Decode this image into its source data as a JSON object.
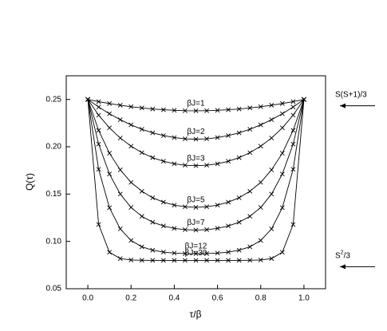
{
  "chart_data": {
    "type": "line",
    "x_label": "τ/β",
    "y_label": "Q(τ)",
    "x": [
      0,
      0.05,
      0.1,
      0.15,
      0.2,
      0.25,
      0.3,
      0.35,
      0.4,
      0.45,
      0.5,
      0.55,
      0.6,
      0.65,
      0.7,
      0.75,
      0.8,
      0.85,
      0.9,
      0.95,
      1
    ],
    "series": [
      {
        "name": "βJ=1",
        "color": "#000000",
        "values": [
          0.25,
          0.2477,
          0.2457,
          0.2439,
          0.2423,
          0.241,
          0.2399,
          0.2391,
          0.2385,
          0.2381,
          0.238,
          0.2381,
          0.2385,
          0.2391,
          0.2399,
          0.241,
          0.2423,
          0.2439,
          0.2457,
          0.2477,
          0.25
        ]
      },
      {
        "name": "βJ=2",
        "color": "#000000",
        "values": [
          0.25,
          0.242,
          0.2349,
          0.2286,
          0.2231,
          0.2185,
          0.2147,
          0.2118,
          0.2097,
          0.2084,
          0.208,
          0.2084,
          0.2097,
          0.2118,
          0.2147,
          0.2185,
          0.2231,
          0.2286,
          0.2349,
          0.242,
          0.25
        ]
      },
      {
        "name": "βJ=3",
        "color": "#000000",
        "values": [
          0.25,
          0.2334,
          0.22,
          0.2092,
          0.2006,
          0.1938,
          0.1885,
          0.1847,
          0.182,
          0.1805,
          0.18,
          0.1805,
          0.182,
          0.1847,
          0.1885,
          0.1938,
          0.2006,
          0.2092,
          0.22,
          0.2334,
          0.25
        ]
      },
      {
        "name": "βJ=5",
        "color": "#000000",
        "values": [
          0.25,
          0.2173,
          0.1932,
          0.1756,
          0.1624,
          0.153,
          0.1461,
          0.1415,
          0.1383,
          0.1366,
          0.136,
          0.1366,
          0.1383,
          0.1415,
          0.1461,
          0.153,
          0.1624,
          0.1756,
          0.1932,
          0.2173,
          0.25
        ]
      },
      {
        "name": "βJ=7",
        "color": "#000000",
        "values": [
          0.25,
          0.2028,
          0.1712,
          0.15,
          0.1359,
          0.1265,
          0.1203,
          0.1163,
          0.1138,
          0.1124,
          0.112,
          0.1124,
          0.1138,
          0.1163,
          0.1203,
          0.1265,
          0.1359,
          0.15,
          0.1712,
          0.2028,
          0.25
        ]
      },
      {
        "name": "βJ=12",
        "color": "#000000",
        "values": [
          0.25,
          0.1762,
          0.1356,
          0.1132,
          0.101,
          0.0943,
          0.0907,
          0.0887,
          0.0877,
          0.0871,
          0.087,
          0.0871,
          0.0877,
          0.0887,
          0.0907,
          0.0943,
          0.101,
          0.1132,
          0.1356,
          0.1762,
          0.25
        ]
      },
      {
        "name": "βJ=30",
        "color": "#000000",
        "values": [
          0.25,
          0.1179,
          0.0885,
          0.0819,
          0.0804,
          0.0801,
          0.08,
          0.08,
          0.08,
          0.08,
          0.08,
          0.08,
          0.08,
          0.08,
          0.08,
          0.0801,
          0.0804,
          0.0819,
          0.0885,
          0.1179,
          0.25
        ]
      }
    ],
    "xlim": [
      -0.1,
      1.1
    ],
    "xticks": [
      {
        "value": 0,
        "label": "0.0"
      },
      0.2,
      0.4,
      0.6,
      0.8,
      {
        "value": 1,
        "label": "1.0"
      }
    ],
    "ylim": [
      0.05,
      0.275
    ],
    "yticks": [
      0.05,
      {
        "value": 0.1,
        "label": "0.10"
      },
      0.15,
      {
        "value": 0.2,
        "label": "0.20"
      },
      0.25
    ],
    "annotations": [
      {
        "text": "S(S+1)/3",
        "value": 0.25
      },
      {
        "base": "S",
        "sup": "2",
        "rest": "/3",
        "value": 0.08
      }
    ]
  }
}
